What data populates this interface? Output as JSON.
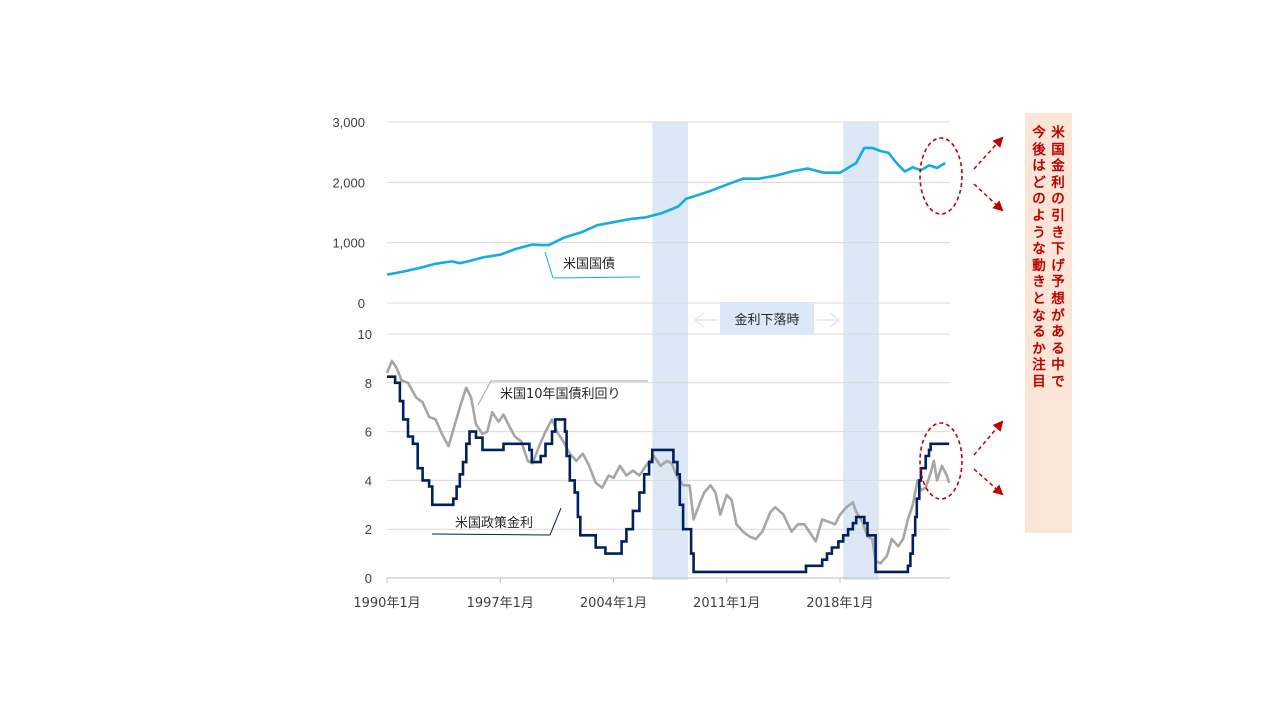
{
  "chart_data": [
    {
      "type": "line",
      "title": "",
      "ylim": [
        0,
        3000
      ],
      "yticks": [
        "3,000",
        "2,000",
        "1,000",
        "0"
      ],
      "ytick_values": [
        3000,
        2000,
        1000,
        0
      ],
      "grid": true,
      "series": [
        {
          "name": "米国国債",
          "color": "#14ace3",
          "points": [
            [
              1990.0,
              470
            ],
            [
              1991.0,
              520
            ],
            [
              1992.0,
              580
            ],
            [
              1993.0,
              650
            ],
            [
              1994.0,
              690
            ],
            [
              1994.5,
              660
            ],
            [
              1995.0,
              690
            ],
            [
              1996.0,
              760
            ],
            [
              1997.0,
              800
            ],
            [
              1998.0,
              900
            ],
            [
              1999.0,
              970
            ],
            [
              1999.5,
              960
            ],
            [
              2000.0,
              960
            ],
            [
              2001.0,
              1090
            ],
            [
              2002.0,
              1170
            ],
            [
              2003.0,
              1290
            ],
            [
              2004.0,
              1340
            ],
            [
              2005.0,
              1390
            ],
            [
              2006.0,
              1420
            ],
            [
              2007.0,
              1490
            ],
            [
              2008.0,
              1600
            ],
            [
              2008.5,
              1730
            ],
            [
              2009.0,
              1770
            ],
            [
              2010.0,
              1860
            ],
            [
              2011.0,
              1960
            ],
            [
              2012.0,
              2060
            ],
            [
              2013.0,
              2060
            ],
            [
              2014.0,
              2110
            ],
            [
              2015.0,
              2180
            ],
            [
              2016.0,
              2230
            ],
            [
              2017.0,
              2160
            ],
            [
              2018.0,
              2160
            ],
            [
              2019.0,
              2320
            ],
            [
              2019.5,
              2570
            ],
            [
              2020.0,
              2570
            ],
            [
              2020.5,
              2520
            ],
            [
              2021.0,
              2490
            ],
            [
              2021.5,
              2320
            ],
            [
              2022.0,
              2180
            ],
            [
              2022.5,
              2250
            ],
            [
              2023.0,
              2200
            ],
            [
              2023.5,
              2280
            ],
            [
              2024.0,
              2240
            ],
            [
              2024.5,
              2320
            ]
          ]
        }
      ]
    },
    {
      "type": "line",
      "title": "",
      "ylim": [
        0,
        10
      ],
      "yticks": [
        "10",
        "8",
        "6",
        "4",
        "2",
        "0"
      ],
      "ytick_values": [
        10,
        8,
        6,
        4,
        2,
        0
      ],
      "categories": [
        "1990年1月",
        "1997年1月",
        "2004年1月",
        "2011年1月",
        "2018年1月"
      ],
      "category_values": [
        1990,
        1997,
        2004,
        2011,
        2018
      ],
      "xlim": [
        1990,
        2024.8
      ],
      "grid": true,
      "series": [
        {
          "name": "米国10年国債利回り",
          "color": "#a6a6a6",
          "points": [
            [
              1990.0,
              8.4
            ],
            [
              1990.3,
              8.9
            ],
            [
              1990.6,
              8.6
            ],
            [
              1990.9,
              8.1
            ],
            [
              1991.3,
              8.0
            ],
            [
              1991.8,
              7.4
            ],
            [
              1992.2,
              7.2
            ],
            [
              1992.6,
              6.6
            ],
            [
              1993.0,
              6.5
            ],
            [
              1993.4,
              5.9
            ],
            [
              1993.8,
              5.4
            ],
            [
              1994.2,
              6.3
            ],
            [
              1994.6,
              7.2
            ],
            [
              1994.9,
              7.8
            ],
            [
              1995.2,
              7.4
            ],
            [
              1995.5,
              6.3
            ],
            [
              1995.9,
              5.9
            ],
            [
              1996.2,
              6.0
            ],
            [
              1996.5,
              6.8
            ],
            [
              1996.9,
              6.4
            ],
            [
              1997.2,
              6.7
            ],
            [
              1997.5,
              6.3
            ],
            [
              1997.9,
              5.8
            ],
            [
              1998.3,
              5.6
            ],
            [
              1998.7,
              4.8
            ],
            [
              1999.0,
              4.7
            ],
            [
              1999.4,
              5.4
            ],
            [
              1999.8,
              6.0
            ],
            [
              2000.2,
              6.5
            ],
            [
              2000.5,
              6.0
            ],
            [
              2000.9,
              5.6
            ],
            [
              2001.3,
              5.1
            ],
            [
              2001.7,
              4.8
            ],
            [
              2002.1,
              5.1
            ],
            [
              2002.5,
              4.6
            ],
            [
              2002.9,
              3.9
            ],
            [
              2003.3,
              3.7
            ],
            [
              2003.7,
              4.2
            ],
            [
              2004.0,
              4.1
            ],
            [
              2004.4,
              4.6
            ],
            [
              2004.8,
              4.2
            ],
            [
              2005.2,
              4.4
            ],
            [
              2005.6,
              4.2
            ],
            [
              2006.0,
              4.6
            ],
            [
              2006.5,
              5.0
            ],
            [
              2006.9,
              4.6
            ],
            [
              2007.3,
              4.8
            ],
            [
              2007.6,
              4.7
            ],
            [
              2007.9,
              4.2
            ],
            [
              2008.3,
              3.8
            ],
            [
              2008.7,
              3.8
            ],
            [
              2008.95,
              2.4
            ],
            [
              2009.3,
              3.0
            ],
            [
              2009.6,
              3.5
            ],
            [
              2010.0,
              3.8
            ],
            [
              2010.3,
              3.5
            ],
            [
              2010.6,
              2.6
            ],
            [
              2011.0,
              3.4
            ],
            [
              2011.3,
              3.2
            ],
            [
              2011.6,
              2.2
            ],
            [
              2012.0,
              1.9
            ],
            [
              2012.4,
              1.7
            ],
            [
              2012.8,
              1.6
            ],
            [
              2013.2,
              1.9
            ],
            [
              2013.7,
              2.7
            ],
            [
              2014.0,
              2.9
            ],
            [
              2014.5,
              2.6
            ],
            [
              2015.0,
              1.9
            ],
            [
              2015.4,
              2.2
            ],
            [
              2015.8,
              2.2
            ],
            [
              2016.2,
              1.8
            ],
            [
              2016.5,
              1.5
            ],
            [
              2016.9,
              2.4
            ],
            [
              2017.3,
              2.3
            ],
            [
              2017.7,
              2.2
            ],
            [
              2018.0,
              2.6
            ],
            [
              2018.4,
              2.9
            ],
            [
              2018.8,
              3.1
            ],
            [
              2019.0,
              2.7
            ],
            [
              2019.4,
              2.3
            ],
            [
              2019.7,
              1.7
            ],
            [
              2020.0,
              1.6
            ],
            [
              2020.2,
              0.7
            ],
            [
              2020.5,
              0.6
            ],
            [
              2020.9,
              0.9
            ],
            [
              2021.2,
              1.6
            ],
            [
              2021.6,
              1.3
            ],
            [
              2021.9,
              1.6
            ],
            [
              2022.2,
              2.4
            ],
            [
              2022.5,
              3.0
            ],
            [
              2022.8,
              4.0
            ],
            [
              2023.0,
              3.6
            ],
            [
              2023.3,
              3.7
            ],
            [
              2023.6,
              4.3
            ],
            [
              2023.8,
              4.8
            ],
            [
              2024.0,
              4.0
            ],
            [
              2024.3,
              4.6
            ],
            [
              2024.6,
              4.2
            ],
            [
              2024.75,
              3.9
            ]
          ]
        },
        {
          "name": "米国政策金利",
          "color": "#002060",
          "points": [
            [
              1990.0,
              8.25
            ],
            [
              1990.5,
              8.0
            ],
            [
              1990.8,
              7.25
            ],
            [
              1991.0,
              6.5
            ],
            [
              1991.3,
              5.8
            ],
            [
              1991.6,
              5.5
            ],
            [
              1991.9,
              4.5
            ],
            [
              1992.2,
              4.0
            ],
            [
              1992.6,
              3.75
            ],
            [
              1992.8,
              3.0
            ],
            [
              1994.1,
              3.25
            ],
            [
              1994.3,
              3.75
            ],
            [
              1994.5,
              4.25
            ],
            [
              1994.7,
              4.75
            ],
            [
              1994.9,
              5.5
            ],
            [
              1995.1,
              6.0
            ],
            [
              1995.5,
              5.75
            ],
            [
              1995.9,
              5.25
            ],
            [
              1997.2,
              5.5
            ],
            [
              1998.8,
              5.25
            ],
            [
              1998.95,
              4.75
            ],
            [
              1999.5,
              5.0
            ],
            [
              1999.8,
              5.5
            ],
            [
              2000.2,
              6.0
            ],
            [
              2000.4,
              6.5
            ],
            [
              2001.0,
              6.0
            ],
            [
              2001.1,
              5.0
            ],
            [
              2001.3,
              4.0
            ],
            [
              2001.6,
              3.5
            ],
            [
              2001.8,
              2.5
            ],
            [
              2001.95,
              1.75
            ],
            [
              2002.9,
              1.25
            ],
            [
              2003.5,
              1.0
            ],
            [
              2004.5,
              1.5
            ],
            [
              2004.8,
              2.0
            ],
            [
              2005.2,
              2.75
            ],
            [
              2005.6,
              3.5
            ],
            [
              2005.9,
              4.25
            ],
            [
              2006.2,
              4.75
            ],
            [
              2006.4,
              5.25
            ],
            [
              2007.7,
              4.75
            ],
            [
              2007.95,
              4.25
            ],
            [
              2008.1,
              3.0
            ],
            [
              2008.3,
              2.0
            ],
            [
              2008.8,
              1.0
            ],
            [
              2008.95,
              0.25
            ],
            [
              2015.9,
              0.5
            ],
            [
              2016.9,
              0.75
            ],
            [
              2017.2,
              1.0
            ],
            [
              2017.5,
              1.25
            ],
            [
              2017.9,
              1.5
            ],
            [
              2018.2,
              1.75
            ],
            [
              2018.5,
              2.0
            ],
            [
              2018.8,
              2.25
            ],
            [
              2019.0,
              2.5
            ],
            [
              2019.5,
              2.25
            ],
            [
              2019.7,
              1.75
            ],
            [
              2020.2,
              0.25
            ],
            [
              2022.2,
              0.5
            ],
            [
              2022.35,
              1.0
            ],
            [
              2022.5,
              1.75
            ],
            [
              2022.65,
              2.5
            ],
            [
              2022.75,
              3.25
            ],
            [
              2022.9,
              4.0
            ],
            [
              2023.0,
              4.5
            ],
            [
              2023.3,
              5.0
            ],
            [
              2023.5,
              5.25
            ],
            [
              2023.6,
              5.5
            ],
            [
              2024.75,
              5.5
            ]
          ]
        }
      ]
    }
  ],
  "annotations": {
    "shade_label": "金利下落時",
    "shade_periods": [
      [
        2006.4,
        2008.6
      ],
      [
        2018.2,
        2020.4
      ]
    ],
    "note": "米国金利の引き下げ予想がある中で今後はどのような動きとなるか注目",
    "note_col1": "米国金利の引き下げ予想がある中で",
    "note_col2": "今後はどのような動きとなるか注目"
  },
  "colors": {
    "shade": "#dce8f5",
    "circle": "#c00000",
    "arrow": "#c00000",
    "note_bg": "#fbe5d6",
    "note_text": "#c00000"
  }
}
